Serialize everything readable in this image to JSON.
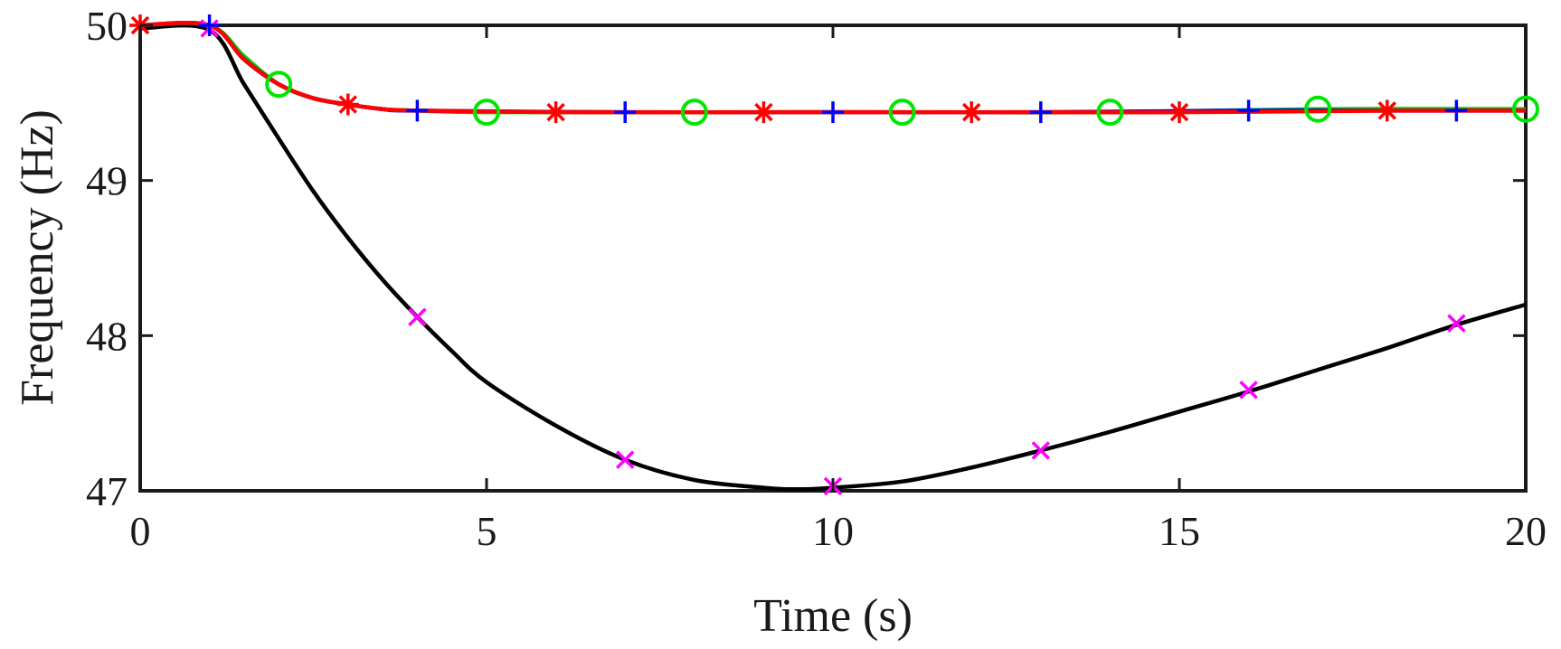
{
  "chart_data": {
    "type": "line",
    "xlabel": "Time (s)",
    "ylabel": "Frequency (Hz)",
    "xlim": [
      0,
      20
    ],
    "ylim": [
      47,
      50
    ],
    "xticks": [
      0,
      5,
      10,
      15,
      20
    ],
    "yticks": [
      47,
      48,
      49,
      50
    ],
    "grid": false,
    "legend": "none",
    "series": [
      {
        "color": "#000000",
        "line": "solid",
        "marker": "x",
        "marker_color": "#ff00ff",
        "x": [
          0,
          1,
          1.5,
          2,
          2.5,
          3,
          3.5,
          4,
          4.5,
          5,
          6,
          7,
          8,
          9,
          9.5,
          10,
          11,
          12,
          13,
          14,
          15,
          16,
          17,
          18,
          19,
          20
        ],
        "y": [
          49.98,
          49.97,
          49.62,
          49.27,
          48.93,
          48.63,
          48.36,
          48.12,
          47.9,
          47.7,
          47.42,
          47.2,
          47.07,
          47.02,
          47.01,
          47.02,
          47.06,
          47.15,
          47.26,
          47.38,
          47.51,
          47.64,
          47.78,
          47.92,
          48.07,
          48.2
        ]
      },
      {
        "color": "#00c800",
        "line": "solid",
        "marker": "circle",
        "marker_color": "#00e600",
        "x": [
          0,
          1,
          1.5,
          2,
          2.5,
          3,
          3.5,
          4,
          5,
          8,
          11,
          14,
          17,
          20
        ],
        "y": [
          50,
          50,
          49.8,
          49.62,
          49.53,
          49.49,
          49.46,
          49.45,
          49.44,
          49.44,
          49.44,
          49.44,
          49.46,
          49.46
        ]
      },
      {
        "color": "#0000ff",
        "line": "solid",
        "marker": "plus",
        "marker_color": "#0000ff",
        "x": [
          0,
          1,
          1.5,
          2,
          2.5,
          3,
          3.5,
          4,
          7,
          10,
          13,
          16,
          19,
          20
        ],
        "y": [
          50,
          50,
          49.78,
          49.62,
          49.53,
          49.49,
          49.46,
          49.45,
          49.44,
          49.44,
          49.44,
          49.45,
          49.45,
          49.45
        ]
      },
      {
        "color": "#ff0000",
        "line": "solid",
        "marker": "asterisk",
        "marker_color": "#ff0000",
        "x": [
          0,
          1,
          1.5,
          2,
          2.5,
          3,
          3.5,
          4,
          6,
          9,
          12,
          15,
          18,
          20
        ],
        "y": [
          50,
          50,
          49.78,
          49.62,
          49.53,
          49.49,
          49.46,
          49.45,
          49.44,
          49.44,
          49.44,
          49.44,
          49.45,
          49.45
        ]
      }
    ],
    "markers": [
      {
        "series": 0,
        "x": [
          1,
          4,
          7,
          10,
          13,
          16,
          19
        ],
        "y": [
          49.98,
          48.12,
          47.2,
          47.03,
          47.26,
          47.65,
          48.08
        ]
      },
      {
        "series": 1,
        "x": [
          2,
          5,
          8,
          11,
          14,
          17,
          20
        ],
        "y": [
          49.62,
          49.44,
          49.44,
          49.44,
          49.44,
          49.46,
          49.46
        ]
      },
      {
        "series": 2,
        "x": [
          1,
          4,
          7,
          10,
          13,
          16,
          19
        ],
        "y": [
          50,
          49.45,
          49.44,
          49.44,
          49.44,
          49.45,
          49.45
        ]
      },
      {
        "series": 3,
        "x": [
          0,
          3,
          6,
          9,
          12,
          15,
          18
        ],
        "y": [
          50,
          49.49,
          49.44,
          49.44,
          49.44,
          49.44,
          49.45
        ]
      }
    ]
  }
}
